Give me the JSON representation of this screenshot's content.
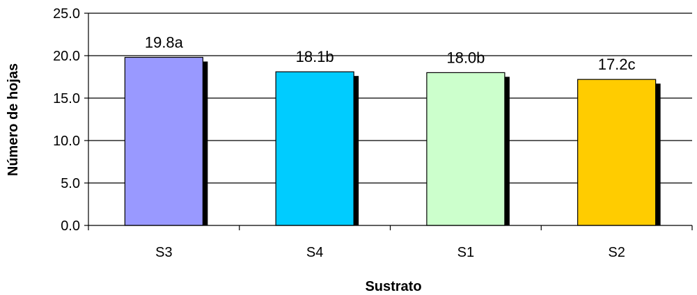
{
  "chart_data": {
    "type": "bar",
    "xlabel": "Sustrato",
    "ylabel": "Número de hojas",
    "categories": [
      "S3",
      "S4",
      "S1",
      "S2"
    ],
    "values": [
      19.8,
      18.1,
      18.0,
      17.2
    ],
    "data_labels": [
      "19.8a",
      "18.1b",
      "18.0b",
      "17.2c"
    ],
    "bar_colors": [
      "#9999FF",
      "#00CCFF",
      "#CCFFCC",
      "#FFCC00"
    ],
    "ylim": [
      0,
      25
    ],
    "yticks": [
      "0.0",
      "5.0",
      "10.0",
      "15.0",
      "20.0",
      "25.0"
    ],
    "grid": true,
    "legend": "none"
  }
}
